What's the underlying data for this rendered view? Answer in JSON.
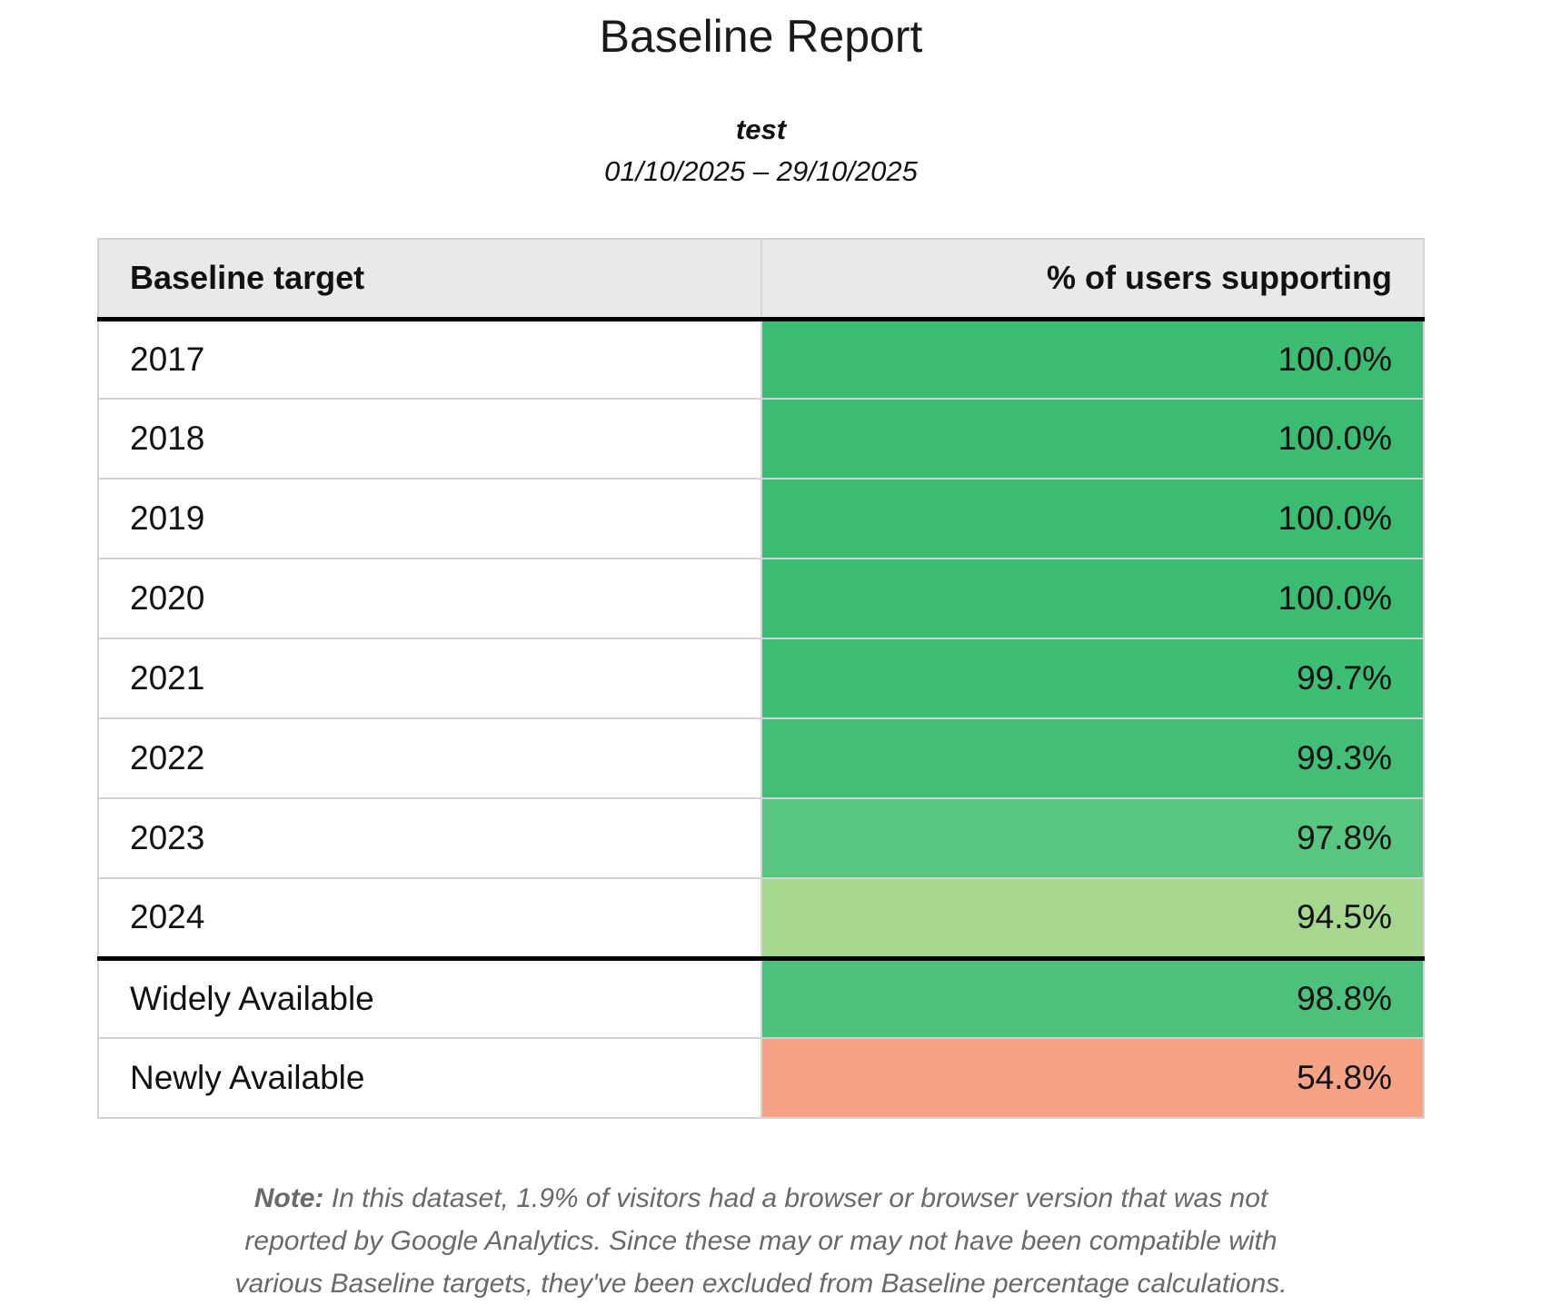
{
  "report": {
    "title": "Baseline Report",
    "subtitle": "test",
    "date_range": "01/10/2025 – 29/10/2025"
  },
  "table": {
    "columns": {
      "target": "Baseline target",
      "value": "% of users supporting"
    },
    "rows": [
      {
        "target": "2017",
        "value": "100.0%",
        "color": "#3cbc72"
      },
      {
        "target": "2018",
        "value": "100.0%",
        "color": "#3cbc72"
      },
      {
        "target": "2019",
        "value": "100.0%",
        "color": "#3cbc72"
      },
      {
        "target": "2020",
        "value": "100.0%",
        "color": "#3cbc72"
      },
      {
        "target": "2021",
        "value": "99.7%",
        "color": "#3ebd74"
      },
      {
        "target": "2022",
        "value": "99.3%",
        "color": "#42be76"
      },
      {
        "target": "2023",
        "value": "97.8%",
        "color": "#58c681"
      },
      {
        "target": "2024",
        "value": "94.5%",
        "color": "#a6d78f"
      },
      {
        "target": "Widely Available",
        "value": "98.8%",
        "color": "#4cc17b"
      },
      {
        "target": "Newly Available",
        "value": "54.8%",
        "color": "#f6a285"
      }
    ]
  },
  "note": {
    "label": "Note:",
    "lines": [
      "In this dataset, 1.9% of visitors had a browser or browser version that was not",
      "reported by Google Analytics. Since these may or may not have been compatible with",
      "various Baseline targets, they've been excluded from Baseline percentage calculations."
    ]
  },
  "colors": {
    "header_bg": "#e9e9e9",
    "row_divider": "#d3d3d3",
    "heavy_rule": "#000000",
    "note_text": "#67696c"
  }
}
